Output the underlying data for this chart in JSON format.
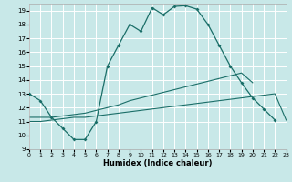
{
  "xlabel": "Humidex (Indice chaleur)",
  "bg_color": "#c8e8e8",
  "grid_color": "#ffffff",
  "line_color": "#1a6e68",
  "xlim": [
    0,
    23
  ],
  "ylim": [
    9,
    19.5
  ],
  "xticks": [
    0,
    1,
    2,
    3,
    4,
    5,
    6,
    7,
    8,
    9,
    10,
    11,
    12,
    13,
    14,
    15,
    16,
    17,
    18,
    19,
    20,
    21,
    22,
    23
  ],
  "yticks": [
    9,
    10,
    11,
    12,
    13,
    14,
    15,
    16,
    17,
    18,
    19
  ],
  "curve1_x": [
    0,
    1,
    2,
    3,
    4,
    5,
    6,
    7,
    8,
    9,
    10,
    11,
    12,
    13,
    14,
    15,
    16,
    17,
    18,
    19,
    20,
    21,
    22
  ],
  "curve1_y": [
    13.0,
    12.5,
    11.3,
    10.5,
    9.7,
    9.7,
    11.0,
    15.0,
    16.5,
    18.0,
    17.5,
    19.2,
    18.7,
    19.3,
    19.35,
    19.1,
    18.0,
    16.5,
    15.0,
    13.8,
    12.7,
    11.9,
    11.1
  ],
  "curve2_x": [
    0,
    1,
    2,
    3,
    4,
    5,
    6,
    7,
    8,
    9,
    10,
    11,
    12,
    13,
    14,
    15,
    16,
    17,
    18,
    19,
    20
  ],
  "curve2_y": [
    11.3,
    11.3,
    11.3,
    11.4,
    11.5,
    11.6,
    11.8,
    12.0,
    12.2,
    12.5,
    12.7,
    12.9,
    13.1,
    13.3,
    13.5,
    13.7,
    13.9,
    14.1,
    14.3,
    14.5,
    13.8
  ],
  "curve3_x": [
    0,
    1,
    2,
    3,
    4,
    5,
    6,
    7,
    8,
    9,
    10,
    11,
    12,
    13,
    14,
    15,
    16,
    17,
    18,
    19,
    20,
    21,
    22,
    23
  ],
  "curve3_y": [
    11.0,
    11.0,
    11.1,
    11.2,
    11.3,
    11.3,
    11.4,
    11.5,
    11.6,
    11.7,
    11.8,
    11.9,
    12.0,
    12.1,
    12.2,
    12.3,
    12.4,
    12.5,
    12.6,
    12.7,
    12.8,
    12.9,
    13.0,
    11.1
  ]
}
